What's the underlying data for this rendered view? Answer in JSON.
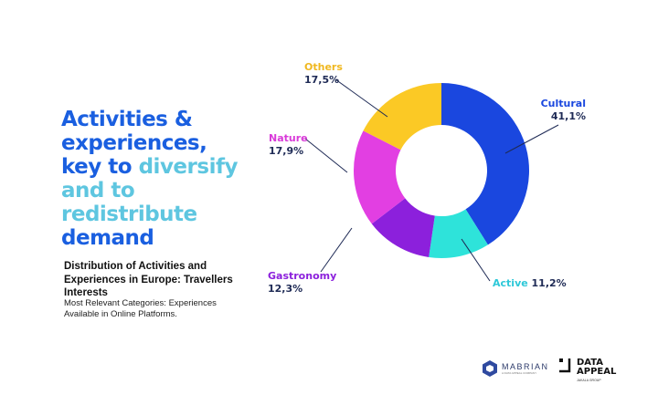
{
  "headline": {
    "part1": "Activities &",
    "part2": "experiences,",
    "part3": "key to ",
    "part4": "diversify",
    "part5": "and to",
    "part6": "redistribute",
    "part7": "demand"
  },
  "subtitle": "Distribution of Activities and Experiences in Europe: Travellers Interests",
  "description": "Most Relevant Categories: Experiences Available in Online Platforms.",
  "logos": {
    "mabrian": "MABRIAN",
    "mabrian_sub": "A DATA APPEAL COMPANY",
    "dataappeal_1": "DATA",
    "dataappeal_2": "APPEAL",
    "dataappeal_sub": "JAKALA GROUP"
  },
  "chart_data": {
    "type": "pie",
    "donut": true,
    "title": "Distribution of Activities and Experiences in Europe: Travellers Interests",
    "categories": [
      "Cultural",
      "Active",
      "Gastronomy",
      "Nature",
      "Others"
    ],
    "values": [
      41.1,
      11.2,
      12.3,
      17.9,
      17.5
    ],
    "value_labels": [
      "41,1%",
      "11,2%",
      "12,3%",
      "17,9%",
      "17,5%"
    ],
    "colors": [
      "#1a47df",
      "#2ee3da",
      "#8c20dc",
      "#e23fe2",
      "#fbc925"
    ],
    "label_colors": [
      "#1a47df",
      "#2ec8d8",
      "#8c20dc",
      "#d93ad9",
      "#f0b820"
    ]
  }
}
